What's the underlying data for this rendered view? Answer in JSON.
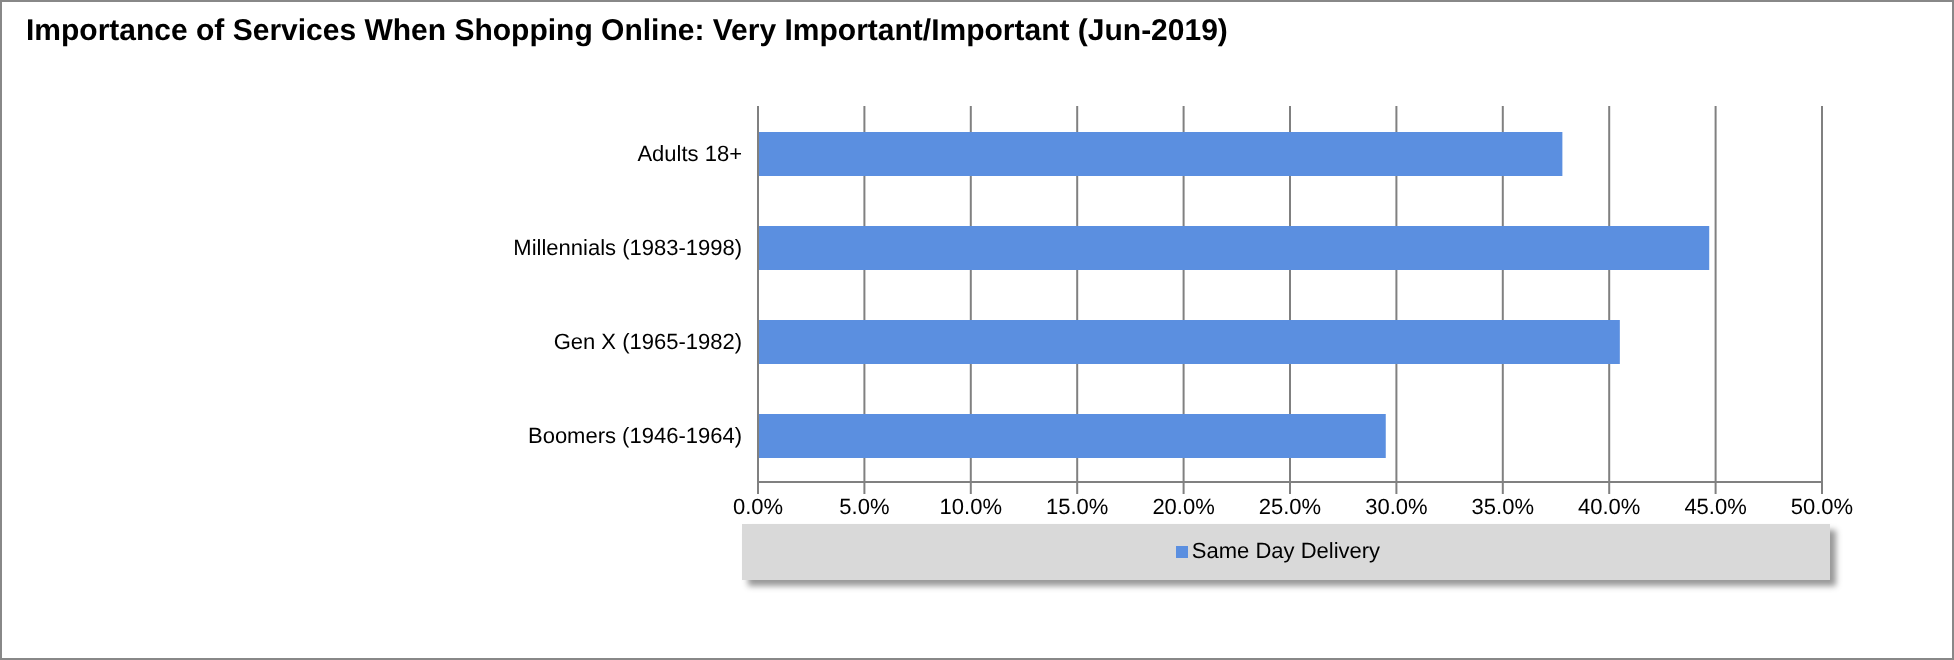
{
  "chart_data": {
    "type": "bar",
    "orientation": "horizontal",
    "title": "Importance of Services When Shopping Online: Very Important/Important (Jun-2019)",
    "categories": [
      "Adults 18+",
      "Millennials (1983-1998)",
      "Gen X (1965-1982)",
      "Boomers (1946-1964)"
    ],
    "series": [
      {
        "name": "Same Day Delivery",
        "color": "#5b8fe0",
        "values": [
          37.8,
          44.7,
          40.5,
          29.5
        ]
      }
    ],
    "xlim": [
      0,
      50
    ],
    "xticks": [
      {
        "value": 0,
        "label": "0.0%"
      },
      {
        "value": 5,
        "label": "5.0%"
      },
      {
        "value": 10,
        "label": "10.0%"
      },
      {
        "value": 15,
        "label": "15.0%"
      },
      {
        "value": 20,
        "label": "20.0%"
      },
      {
        "value": 25,
        "label": "25.0%"
      },
      {
        "value": 30,
        "label": "30.0%"
      },
      {
        "value": 35,
        "label": "35.0%"
      },
      {
        "value": 40,
        "label": "40.0%"
      },
      {
        "value": 45,
        "label": "45.0%"
      },
      {
        "value": 50,
        "label": "50.0%"
      }
    ],
    "grid": "x",
    "legend": "bottom"
  }
}
